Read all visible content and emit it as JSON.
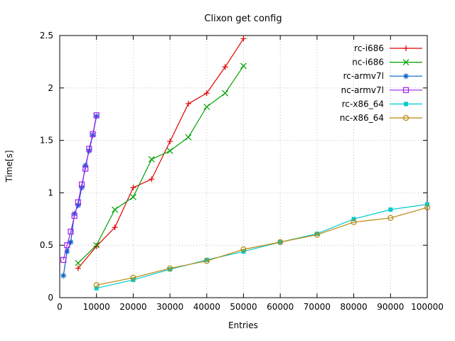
{
  "chart_data": {
    "type": "line",
    "title": "Clixon get config",
    "xlabel": "Entries",
    "ylabel": "Time[s]",
    "xlim": [
      0,
      100000
    ],
    "ylim": [
      0,
      2.5
    ],
    "x_ticks": [
      0,
      10000,
      20000,
      30000,
      40000,
      50000,
      60000,
      70000,
      80000,
      90000,
      100000
    ],
    "y_ticks": [
      0,
      0.5,
      1,
      1.5,
      2,
      2.5
    ],
    "grid": true,
    "legend_position": "top-right-inside",
    "series": [
      {
        "name": "rc-i686",
        "color": "#e00000",
        "marker": "plus",
        "x": [
          5000,
          10000,
          15000,
          20000,
          25000,
          30000,
          35000,
          40000,
          45000,
          50000
        ],
        "y": [
          0.28,
          0.49,
          0.67,
          1.05,
          1.13,
          1.49,
          1.85,
          1.95,
          2.2,
          2.47
        ]
      },
      {
        "name": "nc-i686",
        "color": "#00a000",
        "marker": "cross",
        "x": [
          5000,
          10000,
          15000,
          20000,
          25000,
          30000,
          35000,
          40000,
          45000,
          50000
        ],
        "y": [
          0.33,
          0.5,
          0.84,
          0.96,
          1.32,
          1.4,
          1.53,
          1.82,
          1.95,
          2.21
        ]
      },
      {
        "name": "rc-armv7l",
        "color": "#0060c8",
        "marker": "asterisk",
        "x": [
          1000,
          2000,
          3000,
          4000,
          5000,
          6000,
          7000,
          8000,
          9000,
          10000
        ],
        "y": [
          0.21,
          0.44,
          0.53,
          0.8,
          0.88,
          1.05,
          1.26,
          1.4,
          1.55,
          1.73
        ]
      },
      {
        "name": "nc-armv7l",
        "color": "#a020f0",
        "marker": "square-open",
        "x": [
          1000,
          2000,
          3000,
          4000,
          5000,
          6000,
          7000,
          8000,
          9000,
          10000
        ],
        "y": [
          0.36,
          0.5,
          0.63,
          0.78,
          0.91,
          1.08,
          1.23,
          1.42,
          1.56,
          1.74
        ]
      },
      {
        "name": "rc-x86_64",
        "color": "#00cccc",
        "marker": "square-filled",
        "x": [
          10000,
          20000,
          30000,
          40000,
          50000,
          60000,
          70000,
          80000,
          90000,
          100000
        ],
        "y": [
          0.09,
          0.17,
          0.27,
          0.36,
          0.44,
          0.53,
          0.61,
          0.75,
          0.84,
          0.89
        ]
      },
      {
        "name": "nc-x86_64",
        "color": "#b8860b",
        "marker": "circle-open",
        "x": [
          10000,
          20000,
          30000,
          40000,
          50000,
          60000,
          70000,
          80000,
          90000,
          100000
        ],
        "y": [
          0.12,
          0.19,
          0.28,
          0.35,
          0.46,
          0.53,
          0.6,
          0.72,
          0.76,
          0.86
        ]
      }
    ]
  }
}
